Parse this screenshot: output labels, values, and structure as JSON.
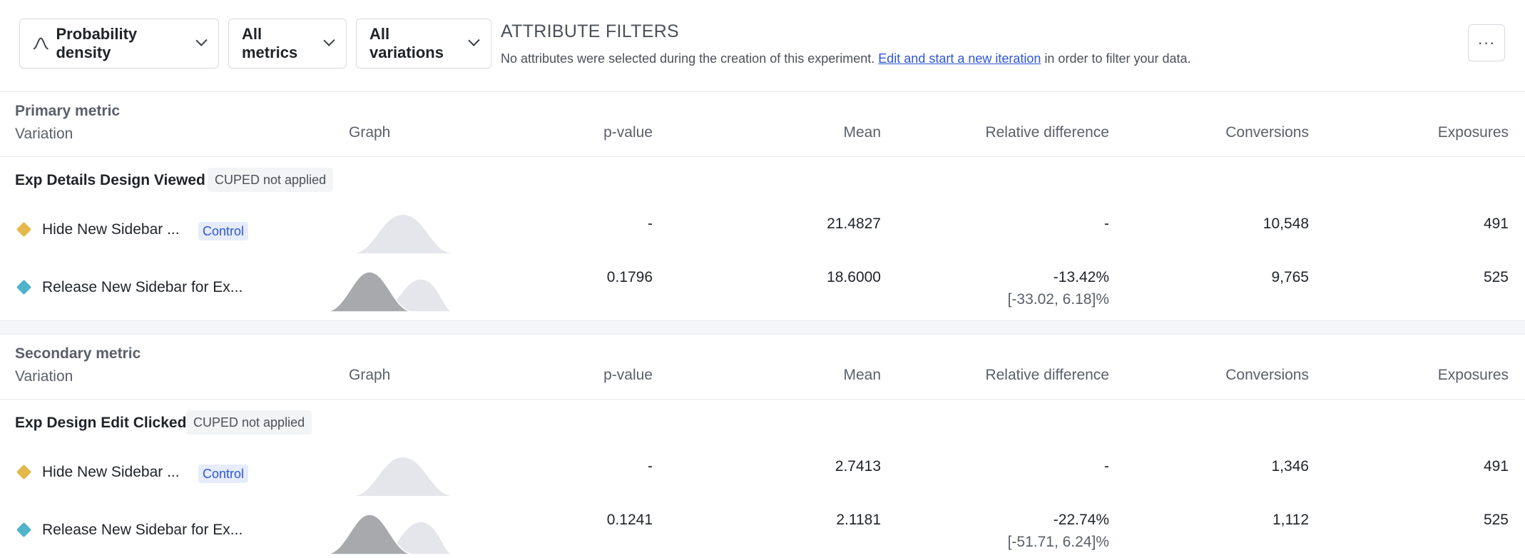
{
  "toolbar": {
    "density_label": "Probability density",
    "metrics_label": "All metrics",
    "variations_label": "All variations",
    "attr_title": "ATTRIBUTE FILTERS",
    "attr_note_before": "No attributes were selected during the creation of this experiment. ",
    "attr_note_link": "Edit and start a new iteration",
    "attr_note_after": " in order to filter your data.",
    "more_label": "···"
  },
  "columns": {
    "variation": "Variation",
    "graph": "Graph",
    "pvalue": "p-value",
    "mean": "Mean",
    "reldiff": "Relative difference",
    "conversions": "Conversions",
    "exposures": "Exposures"
  },
  "colors": {
    "control": "#e3b94a",
    "treatment": "#4fb3cb",
    "accent": "#2f55d4"
  },
  "primary": {
    "type_label": "Primary metric",
    "metric_name": "Exp Details Design Viewed",
    "cuped": "CUPED not applied",
    "rows": [
      {
        "name": "Hide New Sidebar ...",
        "badge": "Control",
        "pvalue": "-",
        "mean": "21.4827",
        "reldiff": "-",
        "ci": "",
        "conversions": "10,548",
        "exposures": "491"
      },
      {
        "name": "Release New Sidebar for Ex...",
        "badge": "",
        "pvalue": "0.1796",
        "mean": "18.6000",
        "reldiff": "-13.42%",
        "ci": "[-33.02, 6.18]%",
        "conversions": "9,765",
        "exposures": "525"
      }
    ]
  },
  "secondary": {
    "type_label": "Secondary metric",
    "metric_name": "Exp Design Edit Clicked",
    "cuped": "CUPED not applied",
    "rows": [
      {
        "name": "Hide New Sidebar ...",
        "badge": "Control",
        "pvalue": "-",
        "mean": "2.7413",
        "reldiff": "-",
        "ci": "",
        "conversions": "1,346",
        "exposures": "491"
      },
      {
        "name": "Release New Sidebar for Ex...",
        "badge": "",
        "pvalue": "0.1241",
        "mean": "2.1181",
        "reldiff": "-22.74%",
        "ci": "[-51.71, 6.24]%",
        "conversions": "1,112",
        "exposures": "525"
      }
    ]
  }
}
